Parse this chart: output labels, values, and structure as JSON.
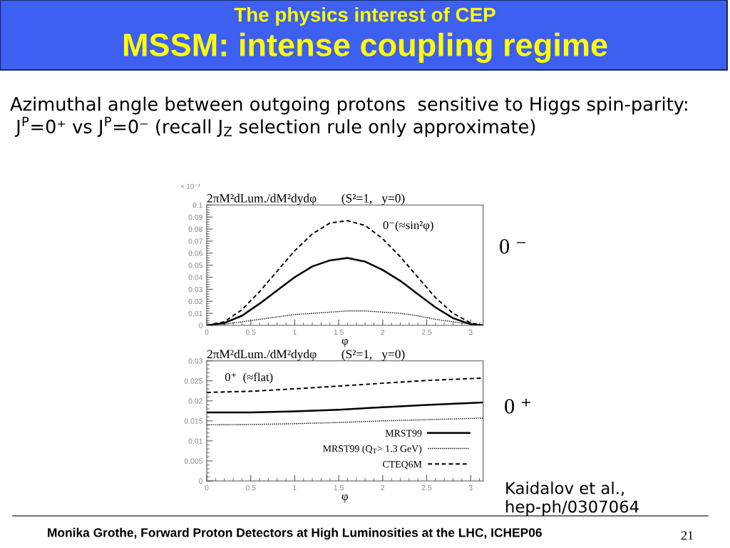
{
  "chart_data": [
    {
      "type": "line",
      "title": "2πM²dLum./dM²dydφ        (S²=1,   y=0)",
      "xlabel": "φ",
      "annotations": [
        "The physics interest of CEP",
        "MSSM: intense coupling regime",
        "Azimuthal angle between outgoing protons  sensitive to Higgs spin-parity:",
        " J$^{P}$=0⁺ vs J$^{P}$=0⁻ (recall J$_{Z}$ selection rule only approximate)",
        "× 10⁻³",
        "0⁻(≈sin²φ)",
        "0 ⁻"
      ],
      "x": [
        0,
        0.2,
        0.4,
        0.6,
        0.8,
        1.0,
        1.2,
        1.4,
        1.6,
        1.8,
        2.0,
        2.2,
        2.4,
        2.6,
        2.8,
        3.0,
        3.14
      ],
      "series": [
        {
          "color": "#000000",
          "line_style": "dashed",
          "values": [
            0,
            0.003,
            0.013,
            0.028,
            0.045,
            0.062,
            0.076,
            0.085,
            0.087,
            0.083,
            0.072,
            0.057,
            0.04,
            0.023,
            0.01,
            0.002,
            0
          ]
        },
        {
          "color": "#000000",
          "line_style": "solid",
          "values": [
            0,
            0.002,
            0.008,
            0.018,
            0.029,
            0.04,
            0.049,
            0.054,
            0.056,
            0.053,
            0.046,
            0.037,
            0.026,
            0.015,
            0.006,
            0.001,
            0
          ]
        },
        {
          "color": "#000000",
          "line_style": "dotted",
          "values": [
            0,
            0.001,
            0.003,
            0.005,
            0.007,
            0.009,
            0.01,
            0.011,
            0.012,
            0.012,
            0.011,
            0.01,
            0.008,
            0.005,
            0.003,
            0.001,
            0
          ]
        }
      ],
      "xlim": [
        0,
        3.1416
      ],
      "ylim": [
        0,
        0.1
      ],
      "xticks": [
        0,
        0.5,
        1,
        1.5,
        2,
        2.5,
        3
      ],
      "yticks": [
        0,
        0.01,
        0.02,
        0.03,
        0.04,
        0.05,
        0.06,
        0.07,
        0.08,
        0.09,
        0.1
      ]
    },
    {
      "type": "line",
      "title": "2πM²dLum./dM²dydφ        (S²=1,   y=0)",
      "xlabel": "φ",
      "annotations": [
        "0⁺  (≈flat)",
        "0 ⁺",
        "Kaidalov et al.,",
        "hep-ph/0307064",
        "Monika Grothe, Forward Proton Detectors at High Luminosities at the LHC, ICHEP06",
        "21"
      ],
      "x": [
        0,
        0.5,
        1,
        1.5,
        2,
        2.5,
        3.14
      ],
      "series": [
        {
          "name": "MRST99",
          "color": "#000000",
          "line_style": "solid",
          "values": [
            0.0171,
            0.0171,
            0.0174,
            0.0178,
            0.0184,
            0.019,
            0.0196
          ]
        },
        {
          "name": "MRST99 (Q$_{T}$> 1.3 GeV)",
          "color": "#000000",
          "line_style": "dotted",
          "values": [
            0.014,
            0.0141,
            0.0143,
            0.0146,
            0.015,
            0.0153,
            0.0157
          ]
        },
        {
          "name": "CTEQ6M",
          "color": "#000000",
          "line_style": "dashed",
          "values": [
            0.0221,
            0.0224,
            0.023,
            0.0237,
            0.0244,
            0.0251,
            0.0257
          ]
        }
      ],
      "xlim": [
        0,
        3.1416
      ],
      "ylim": [
        0,
        0.03
      ],
      "xticks": [
        0,
        0.5,
        1,
        1.5,
        2,
        2.5,
        3
      ],
      "yticks": [
        0,
        0.005,
        0.01,
        0.015,
        0.02,
        0.025,
        0.03
      ],
      "legend": "bottom right"
    }
  ]
}
